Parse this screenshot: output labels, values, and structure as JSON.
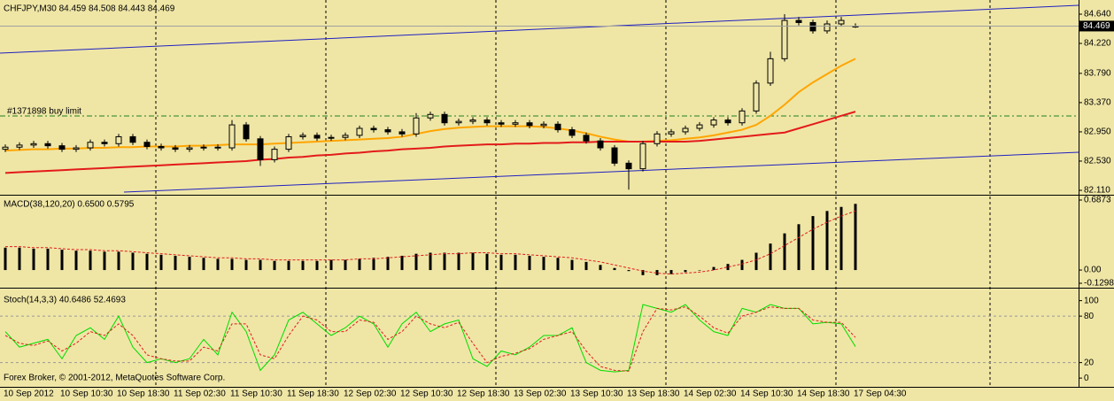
{
  "chart_data": [
    {
      "type": "candlestick",
      "title": "CHFJPY,M30  84.459 84.508 84.443 84.469",
      "annotation": "#1371898 buy limit",
      "categories": [
        "10 Sep 2012",
        null,
        null,
        null,
        "10 Sep 10:30",
        null,
        null,
        null,
        "10 Sep 18:30",
        null,
        null,
        null,
        "11 Sep 02:30",
        null,
        null,
        null,
        "11 Sep 10:30",
        null,
        null,
        null,
        "11 Sep 18:30",
        null,
        null,
        null,
        "12 Sep 02:30",
        null,
        null,
        null,
        "12 Sep 10:30",
        null,
        null,
        null,
        "12 Sep 18:30",
        null,
        null,
        null,
        "13 Sep 02:30",
        null,
        null,
        null,
        "13 Sep 10:30",
        null,
        null,
        null,
        "13 Sep 18:30",
        null,
        null,
        null,
        "14 Sep 02:30",
        null,
        null,
        null,
        "14 Sep 10:30",
        null,
        null,
        null,
        "14 Sep 18:30",
        null,
        null,
        null,
        "17 Sep 04:30"
      ],
      "open": [
        82.7,
        82.73,
        82.76,
        82.78,
        82.75,
        82.7,
        82.72,
        82.8,
        82.78,
        82.88,
        82.8,
        82.74,
        82.72,
        82.7,
        82.72,
        82.73,
        82.72,
        83.05,
        82.85,
        82.55,
        82.7,
        82.88,
        82.9,
        82.86,
        82.87,
        82.9,
        83.0,
        82.98,
        82.95,
        82.92,
        83.15,
        83.2,
        83.08,
        83.1,
        83.12,
        83.08,
        83.06,
        83.08,
        83.04,
        83.06,
        82.98,
        82.9,
        82.82,
        82.72,
        82.5,
        82.42,
        82.78,
        82.92,
        82.95,
        83.0,
        83.05,
        83.12,
        83.08,
        83.25,
        83.65,
        84.0,
        84.55,
        84.52,
        84.4,
        84.5,
        84.459
      ],
      "high": [
        82.77,
        82.8,
        82.82,
        82.82,
        82.79,
        82.76,
        82.84,
        82.84,
        82.92,
        82.92,
        82.84,
        82.78,
        82.76,
        82.76,
        82.77,
        82.77,
        83.12,
        83.09,
        82.89,
        82.74,
        82.92,
        82.94,
        82.94,
        82.91,
        82.94,
        83.04,
        83.04,
        83.02,
        82.99,
        83.22,
        83.24,
        83.24,
        83.14,
        83.16,
        83.16,
        83.12,
        83.12,
        83.12,
        83.1,
        83.1,
        83.02,
        82.94,
        82.86,
        82.76,
        82.54,
        82.82,
        82.96,
        82.99,
        83.04,
        83.09,
        83.16,
        83.16,
        83.29,
        83.69,
        84.1,
        84.64,
        84.6,
        84.56,
        84.55,
        84.6,
        84.508
      ],
      "low": [
        82.66,
        82.69,
        82.72,
        82.71,
        82.66,
        82.66,
        82.68,
        82.74,
        82.74,
        82.76,
        82.7,
        82.68,
        82.66,
        82.66,
        82.68,
        82.68,
        82.68,
        82.81,
        82.46,
        82.51,
        82.66,
        82.84,
        82.82,
        82.82,
        82.83,
        82.86,
        82.94,
        82.91,
        82.88,
        82.88,
        83.11,
        83.04,
        83.04,
        83.06,
        83.04,
        83.02,
        83.02,
        83.0,
        83.0,
        82.94,
        82.86,
        82.78,
        82.68,
        82.46,
        82.12,
        82.38,
        82.74,
        82.88,
        82.91,
        82.96,
        83.01,
        83.04,
        83.04,
        83.21,
        83.61,
        83.96,
        84.48,
        84.36,
        84.36,
        84.46,
        84.443
      ],
      "close": [
        82.73,
        82.76,
        82.78,
        82.75,
        82.7,
        82.72,
        82.8,
        82.78,
        82.88,
        82.8,
        82.74,
        82.72,
        82.7,
        82.72,
        82.73,
        82.72,
        83.05,
        82.85,
        82.55,
        82.7,
        82.88,
        82.9,
        82.86,
        82.87,
        82.9,
        83.0,
        82.98,
        82.95,
        82.92,
        83.15,
        83.2,
        83.08,
        83.1,
        83.12,
        83.08,
        83.06,
        83.08,
        83.04,
        83.06,
        82.98,
        82.9,
        82.82,
        82.72,
        82.5,
        82.42,
        82.78,
        82.92,
        82.95,
        83.0,
        83.05,
        83.12,
        83.08,
        83.25,
        83.65,
        84.0,
        84.55,
        84.52,
        84.4,
        84.5,
        84.55,
        84.469
      ],
      "series": [
        {
          "color": "#ffa500",
          "values": [
            82.68,
            82.69,
            82.7,
            82.7,
            82.71,
            82.71,
            82.72,
            82.72,
            82.73,
            82.73,
            82.74,
            82.74,
            82.74,
            82.75,
            82.75,
            82.76,
            82.77,
            82.77,
            82.77,
            82.78,
            82.79,
            82.8,
            82.81,
            82.82,
            82.83,
            82.84,
            82.85,
            82.86,
            82.88,
            82.92,
            82.96,
            82.99,
            83.01,
            83.02,
            83.03,
            83.03,
            83.03,
            83.03,
            83.02,
            83.0,
            82.97,
            82.93,
            82.88,
            82.84,
            82.81,
            82.81,
            82.82,
            82.83,
            82.85,
            82.87,
            82.9,
            82.94,
            82.98,
            83.05,
            83.18,
            83.34,
            83.52,
            83.66,
            83.78,
            83.9,
            84.0
          ]
        },
        {
          "color": "#e31b1b",
          "values": [
            82.36,
            82.37,
            82.38,
            82.39,
            82.4,
            82.41,
            82.42,
            82.43,
            82.44,
            82.45,
            82.46,
            82.47,
            82.48,
            82.49,
            82.5,
            82.51,
            82.52,
            82.53,
            82.55,
            82.56,
            82.58,
            82.59,
            82.61,
            82.62,
            82.64,
            82.65,
            82.67,
            82.68,
            82.7,
            82.71,
            82.72,
            82.74,
            82.75,
            82.76,
            82.77,
            82.77,
            82.78,
            82.78,
            82.79,
            82.79,
            82.8,
            82.8,
            82.81,
            82.81,
            82.81,
            82.81,
            82.81,
            82.81,
            82.81,
            82.82,
            82.84,
            82.86,
            82.88,
            82.9,
            82.92,
            82.94,
            83.0,
            83.06,
            83.12,
            83.18,
            83.24
          ]
        }
      ],
      "ylim": [
        82.072,
        84.818
      ],
      "yticks": [
        {
          "value": 84.64,
          "label": "84.640"
        },
        {
          "value": 84.22,
          "label": "84.220"
        },
        {
          "value": 83.79,
          "label": "83.790"
        },
        {
          "value": 83.37,
          "label": "83.370"
        },
        {
          "value": 82.95,
          "label": "82.950"
        },
        {
          "value": 82.53,
          "label": "82.530"
        },
        {
          "value": 82.11,
          "label": "82.110"
        }
      ]
    },
    {
      "type": "macd",
      "title": "MACD(38,120,20) 0.6500 0.5795",
      "color": "#000000",
      "signal_color": "#e31b1b",
      "values": [
        0.22,
        0.22,
        0.21,
        0.21,
        0.2,
        0.19,
        0.19,
        0.18,
        0.18,
        0.17,
        0.16,
        0.15,
        0.14,
        0.13,
        0.12,
        0.11,
        0.11,
        0.1,
        0.1,
        0.09,
        0.09,
        0.09,
        0.09,
        0.1,
        0.1,
        0.11,
        0.12,
        0.13,
        0.14,
        0.16,
        0.17,
        0.17,
        0.17,
        0.17,
        0.16,
        0.15,
        0.15,
        0.14,
        0.13,
        0.12,
        0.1,
        0.08,
        0.05,
        0.02,
        -0.01,
        -0.05,
        -0.05,
        -0.04,
        -0.02,
        0.0,
        0.03,
        0.06,
        0.1,
        0.17,
        0.26,
        0.36,
        0.45,
        0.53,
        0.58,
        0.62,
        0.65
      ],
      "signal": [
        0.23,
        0.23,
        0.22,
        0.22,
        0.21,
        0.2,
        0.2,
        0.19,
        0.19,
        0.18,
        0.17,
        0.16,
        0.15,
        0.14,
        0.13,
        0.12,
        0.12,
        0.11,
        0.11,
        0.1,
        0.1,
        0.1,
        0.1,
        0.1,
        0.1,
        0.11,
        0.11,
        0.12,
        0.13,
        0.14,
        0.15,
        0.16,
        0.16,
        0.17,
        0.17,
        0.16,
        0.16,
        0.15,
        0.14,
        0.13,
        0.12,
        0.1,
        0.08,
        0.05,
        0.02,
        -0.01,
        -0.03,
        -0.04,
        -0.03,
        -0.02,
        0.0,
        0.03,
        0.06,
        0.1,
        0.16,
        0.24,
        0.32,
        0.4,
        0.47,
        0.53,
        0.5795
      ],
      "ylim": [
        -0.1298,
        0.6873
      ],
      "yticks": [
        0.6873,
        {
          "value": 0,
          "label": "0.00"
        },
        -0.1298
      ]
    },
    {
      "type": "stoch",
      "title": "Stoch(14,3,3) 40.6486 52.4693",
      "color": "#00dd00",
      "signal_color": "#e31b1b",
      "values": [
        60,
        40,
        45,
        50,
        25,
        55,
        65,
        50,
        80,
        40,
        20,
        25,
        20,
        25,
        50,
        30,
        85,
        60,
        10,
        30,
        75,
        85,
        70,
        55,
        65,
        80,
        70,
        40,
        70,
        85,
        60,
        70,
        75,
        25,
        15,
        35,
        30,
        40,
        55,
        55,
        65,
        20,
        10,
        8,
        10,
        95,
        90,
        85,
        95,
        75,
        60,
        55,
        90,
        85,
        95,
        90,
        90,
        70,
        72,
        70,
        40.6486
      ],
      "signal": [
        55,
        45,
        42,
        48,
        35,
        45,
        60,
        55,
        70,
        55,
        30,
        25,
        22,
        22,
        40,
        35,
        70,
        70,
        30,
        25,
        55,
        80,
        75,
        60,
        60,
        75,
        72,
        50,
        60,
        80,
        70,
        65,
        72,
        45,
        20,
        28,
        32,
        38,
        50,
        55,
        60,
        35,
        15,
        10,
        9,
        60,
        90,
        88,
        92,
        80,
        65,
        58,
        80,
        85,
        92,
        90,
        90,
        75,
        72,
        72,
        52.4693
      ],
      "levels": [
        20,
        80
      ],
      "ylim": [
        -9,
        111
      ],
      "yticks": [
        100,
        80,
        20,
        0
      ]
    }
  ],
  "footer": "Forex Broker, © 2001-2012, MetaQuotes Software Corp."
}
